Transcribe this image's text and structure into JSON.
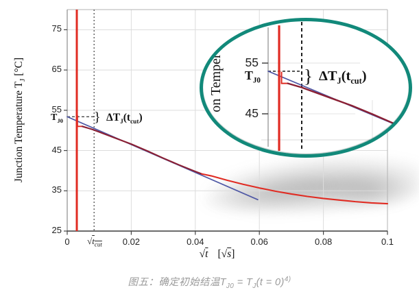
{
  "figure_caption": {
    "c1": "图五：确定初始结温T",
    "s1": "J0",
    "c2": " = T",
    "s2": "J",
    "c3": "(t = 0)",
    "sup": "4)"
  },
  "chart_data": {
    "type": "line",
    "title": "",
    "xlabel": "√t [√s]",
    "ylabel": "Junction Temperature TJ [°C]",
    "ylabel_parts": {
      "p1": "Junction Temperature T",
      "sub": "J",
      "p2": " [°C]"
    },
    "xlabel_parts": {
      "rad": "√",
      "sym": "t",
      "open": "[",
      "rad2": "√",
      "sym2": "s",
      "close": "]"
    },
    "xlim": [
      0,
      0.1
    ],
    "ylim": [
      25,
      80
    ],
    "grid": true,
    "legend": false,
    "x_ticks": [
      {
        "v": 0,
        "label": "0"
      },
      {
        "v": 0.02,
        "label": "0.02"
      },
      {
        "v": 0.04,
        "label": "0.04"
      },
      {
        "v": 0.06,
        "label": "0.06"
      },
      {
        "v": 0.08,
        "label": "0.08"
      },
      {
        "v": 0.1,
        "label": "0.1"
      }
    ],
    "y_ticks": [
      {
        "v": 75,
        "label": "75"
      },
      {
        "v": 65,
        "label": "65"
      },
      {
        "v": 55,
        "label": "55"
      },
      {
        "v": 45,
        "label": "45"
      },
      {
        "v": 35,
        "label": "35"
      },
      {
        "v": 25,
        "label": "25"
      }
    ],
    "series": [
      {
        "name": "measured-cooling-curve",
        "color": "#e02b22",
        "overlap_color": "#8b2034",
        "spike_x": 0.003,
        "step": {
          "from": 0.0032,
          "to": 0.0047,
          "temp": 51.0
        },
        "split_x": 0.042,
        "points": [
          [
            0.0047,
            51.0
          ],
          [
            0.008,
            50.2
          ],
          [
            0.01,
            49.6
          ],
          [
            0.015,
            48.1
          ],
          [
            0.02,
            46.6
          ],
          [
            0.025,
            44.9
          ],
          [
            0.03,
            43.1
          ],
          [
            0.035,
            41.4
          ],
          [
            0.04,
            39.8
          ],
          [
            0.042,
            39.2
          ],
          [
            0.045,
            38.7
          ],
          [
            0.05,
            37.6
          ],
          [
            0.055,
            36.6
          ],
          [
            0.06,
            35.7
          ],
          [
            0.065,
            34.9
          ],
          [
            0.07,
            34.2
          ],
          [
            0.075,
            33.6
          ],
          [
            0.08,
            33.1
          ],
          [
            0.085,
            32.7
          ],
          [
            0.09,
            32.3
          ],
          [
            0.095,
            32.0
          ],
          [
            0.1,
            31.8
          ]
        ]
      },
      {
        "name": "sqrt-t-extrapolation-line",
        "color": "#4f58a5",
        "points": [
          [
            0,
            53.4
          ],
          [
            0.0595,
            32.8
          ]
        ]
      }
    ],
    "annotations": {
      "tj0": {
        "t": "T",
        "sub": "J0",
        "value": 53.4
      },
      "delta": {
        "p1": "ΔT",
        "s1": "J",
        "p2": "(t",
        "s2": "cut",
        "p3": ")"
      },
      "brace": "}",
      "tcut": {
        "x": 0.0084,
        "rad": "√",
        "sym": "t",
        "sub": "cut"
      }
    },
    "inset": {
      "y_ticks": [
        {
          "v": 55,
          "label": "55"
        },
        {
          "v": 45,
          "label": "45"
        }
      ],
      "ylabel_partial": "on Temper",
      "region_x": [
        0,
        0.03
      ],
      "region_y": [
        41,
        58
      ]
    }
  },
  "colors": {
    "curve_red": "#e02b22",
    "overlap_maroon": "#8b2034",
    "extrapolation_blue": "#4f58a5",
    "inset_ring_teal": "#12897a",
    "grid": "#dcdcdc",
    "caption_gray": "#9b9b9b"
  }
}
